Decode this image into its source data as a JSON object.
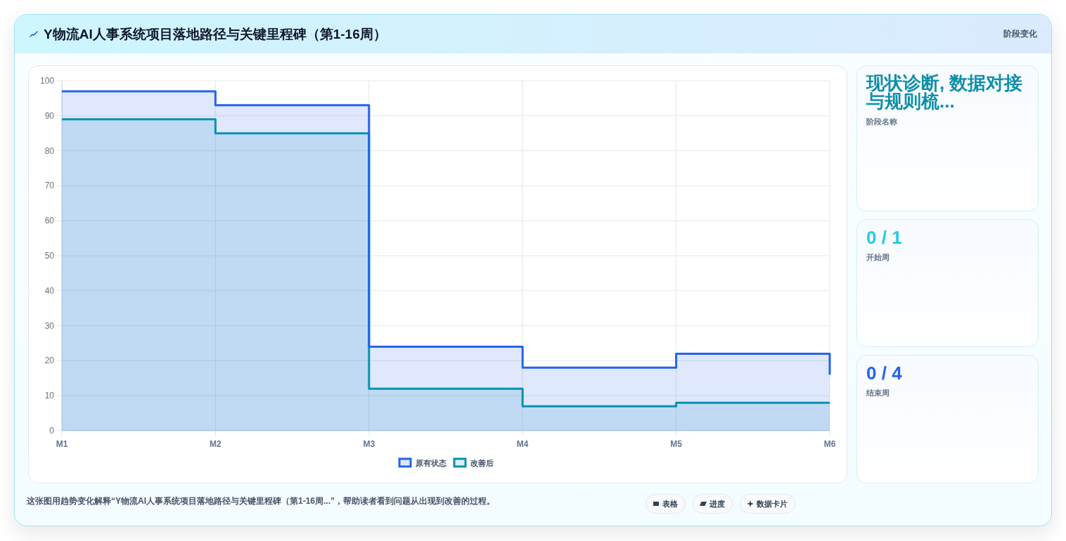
{
  "chart_data": [
    {
      "type": "area",
      "title": "Y物流AI人事系统项目落地路径与关键里程碑（第1-16周）",
      "categories": [
        "M1",
        "M2",
        "M3",
        "M4",
        "M5",
        "M6"
      ],
      "series": [
        {
          "name": "原有状态",
          "color": "#2563eb",
          "x": [
            "M1",
            "M2",
            "M2",
            "M3",
            "M3",
            "M4",
            "M4",
            "M5",
            "M5",
            "M6",
            "M6"
          ],
          "values": [
            97,
            97,
            93,
            93,
            24,
            24,
            18,
            18,
            22,
            22,
            16
          ]
        },
        {
          "name": "改善后",
          "color": "#0891b2",
          "x": [
            "M1",
            "M2",
            "M2",
            "M3",
            "M3",
            "M4",
            "M4",
            "M5",
            "M5",
            "M6"
          ],
          "values": [
            89,
            89,
            85,
            85,
            12,
            12,
            7,
            7,
            8,
            8
          ]
        }
      ],
      "ylim": [
        0,
        100
      ],
      "yticks": [
        0,
        10,
        20,
        30,
        40,
        50,
        60,
        70,
        80,
        90,
        100
      ],
      "grid": true,
      "legend": "bottom",
      "marker": "none",
      "line_style": "solid",
      "annotations": [
        "这张图用趋势变化解释“Y物流AI人事系统项目落地路径与关键里程碑（第1-16周...”，帮助读者看到问题从出现到改善的过程。",
        "表格",
        "进度",
        "数据卡片"
      ]
    },
    {
      "type": "other",
      "title": "阶段变化",
      "annotations": [
        "现状诊断, 数据对接与规则梳...",
        "阶段名称",
        "0 / 1",
        "开始周",
        "0 / 4",
        "结束周"
      ]
    }
  ]
}
